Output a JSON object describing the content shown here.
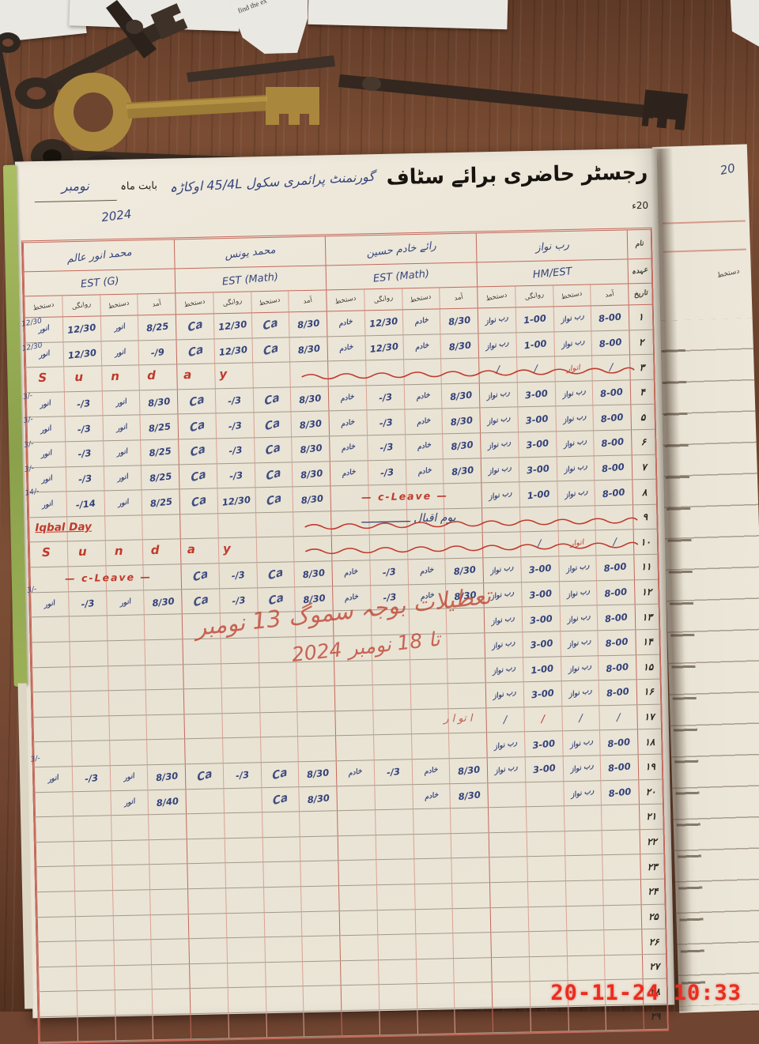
{
  "scene": {
    "desk_color": "#6f4430",
    "keys": [
      "iron-skeleton-key",
      "iron-skeleton-key",
      "brass-bow-key",
      "iron-key-under-brass",
      "key-bow-cluster",
      "long-iron-key",
      "hanging-iron-key"
    ],
    "paper_scrap_text": "find the ex",
    "camera_timestamp": "20-11-24 10:33"
  },
  "register": {
    "title": "رجسٹر حاضری برائے سٹاف",
    "school": "گورنمنٹ پرائمری سکول 45/4L اوکاڑہ",
    "month_label": "بابت ماہ",
    "month": "نومبر",
    "year_suffix": "20ء",
    "year": "2024",
    "next_page_note": "20",
    "next_page_header": "دستخط",
    "side_labels": {
      "name": "نام",
      "designation": "عہدہ",
      "date": "تاریخ"
    },
    "subcols": [
      "آمد",
      "دستخط",
      "روانگی",
      "دستخط"
    ],
    "teachers": [
      {
        "name": "رب نواز",
        "designation": "HM/EST"
      },
      {
        "name": "رائے خادم حسین",
        "designation": "EST (Math)"
      },
      {
        "name": "محمد یونس",
        "designation": "EST (Math)"
      },
      {
        "name": "محمد انور عالم",
        "designation": "EST (G)"
      }
    ],
    "signatures": {
      "rn": "رب نواز",
      "kh": "خادم",
      "ca": "Ca",
      "an": "انور"
    },
    "overlays": {
      "sunday": "S u n d a y",
      "cleave": "— c-Leave —",
      "iqbal_en": "Iqbal Day",
      "iqbal_ur": "یوم اقبال ـــــــــــــــ",
      "smog_line1": "تعطیلات بوجہ سموگ 13 نومبر",
      "smog_line2": "تا 18 نومبر 2024",
      "atwar": "ا تو ا ر"
    },
    "margin_notes": [
      {
        "row": 1,
        "text": "12/30"
      },
      {
        "row": 2,
        "text": "12/30"
      },
      {
        "row": 4,
        "text": "3/-"
      },
      {
        "row": 5,
        "text": "3/-"
      },
      {
        "row": 6,
        "text": "3/-"
      },
      {
        "row": 7,
        "text": "3/-"
      },
      {
        "row": 8,
        "text": "14/-"
      },
      {
        "row": 12,
        "text": "3/-"
      },
      {
        "row": 19,
        "text": "3/-"
      }
    ],
    "rows": [
      {
        "no": "۱",
        "cells": [
          "t:8-00",
          "s:rn",
          "t:1-00",
          "s:rn",
          "t:8/30",
          "s:kh",
          "t:12/30",
          "s:kh",
          "t:8/30",
          "s:ca",
          "t:12/30",
          "s:ca",
          "t:8/25",
          "s:an",
          "t:12/30",
          "s:an"
        ]
      },
      {
        "no": "۲",
        "cells": [
          "t:8-00",
          "s:rn",
          "t:1-00",
          "s:rn",
          "t:8/30",
          "s:kh",
          "t:12/30",
          "s:kh",
          "t:8/30",
          "s:ca",
          "t:12/30",
          "s:ca",
          "t:9/-",
          "s:an",
          "t:12/30",
          "s:an"
        ]
      },
      {
        "no": "۳",
        "cells": [
          "/",
          "r:اتوار",
          "/",
          "/",
          "",
          "",
          "",
          "",
          "",
          "",
          "",
          "",
          "",
          "",
          "",
          ""
        ],
        "ov": [
          "sunday"
        ]
      },
      {
        "no": "۴",
        "cells": [
          "t:8-00",
          "s:rn",
          "t:3-00",
          "s:rn",
          "t:8/30",
          "s:kh",
          "t:3/-",
          "s:kh",
          "t:8/30",
          "s:ca",
          "t:3/-",
          "s:ca",
          "t:8/30",
          "s:an",
          "t:3/-",
          "s:an"
        ]
      },
      {
        "no": "۵",
        "cells": [
          "t:8-00",
          "s:rn",
          "t:3-00",
          "s:rn",
          "t:8/30",
          "s:kh",
          "t:3/-",
          "s:kh",
          "t:8/30",
          "s:ca",
          "t:3/-",
          "s:ca",
          "t:8/25",
          "s:an",
          "t:3/-",
          "s:an"
        ]
      },
      {
        "no": "۶",
        "cells": [
          "t:8-00",
          "s:rn",
          "t:3-00",
          "s:rn",
          "t:8/30",
          "s:kh",
          "t:3/-",
          "s:kh",
          "t:8/30",
          "s:ca",
          "t:3/-",
          "s:ca",
          "t:8/25",
          "s:an",
          "t:3/-",
          "s:an"
        ]
      },
      {
        "no": "۷",
        "cells": [
          "t:8-00",
          "s:rn",
          "t:3-00",
          "s:rn",
          "t:8/30",
          "s:kh",
          "t:3/-",
          "s:kh",
          "t:8/30",
          "s:ca",
          "t:3/-",
          "s:ca",
          "t:8/25",
          "s:an",
          "t:3/-",
          "s:an"
        ]
      },
      {
        "no": "۸",
        "cells": [
          "t:8-00",
          "s:rn",
          "t:1-00",
          "s:rn",
          "",
          "",
          "",
          "",
          "t:8/30",
          "s:ca",
          "t:12/30",
          "s:ca",
          "t:8/25",
          "s:an",
          "t:14/-",
          "s:an"
        ],
        "ov": [
          "cleave-t2"
        ]
      },
      {
        "no": "۹",
        "cells": [
          "",
          "",
          "",
          "",
          "",
          "",
          "",
          "",
          "",
          "",
          "",
          "",
          "",
          "",
          "",
          ""
        ],
        "ov": [
          "iqbal"
        ]
      },
      {
        "no": "۱۰",
        "cells": [
          "/",
          "r:اتوار",
          "/",
          "",
          "",
          "",
          "",
          "",
          "",
          "",
          "",
          "",
          "",
          "",
          "",
          ""
        ],
        "ov": [
          "sunday"
        ]
      },
      {
        "no": "۱۱",
        "cells": [
          "t:8-00",
          "s:rn",
          "t:3-00",
          "s:rn",
          "t:8/30",
          "s:kh",
          "t:3/-",
          "s:kh",
          "t:8/30",
          "s:ca",
          "t:3/-",
          "s:ca",
          "",
          "",
          "",
          ""
        ],
        "ov": [
          "cleave-t4"
        ]
      },
      {
        "no": "۱۲",
        "cells": [
          "t:8-00",
          "s:rn",
          "t:3-00",
          "s:rn",
          "t:8/30",
          "s:kh",
          "t:3/-",
          "s:kh",
          "t:8/30",
          "s:ca",
          "t:3/-",
          "s:ca",
          "t:8/30",
          "s:an",
          "t:3/-",
          "s:an"
        ]
      },
      {
        "no": "۱۳",
        "cells": [
          "t:8-00",
          "s:rn",
          "t:3-00",
          "s:rn",
          "",
          "",
          "",
          "",
          "",
          "",
          "",
          "",
          "",
          "",
          "",
          ""
        ],
        "ov": [
          "smog"
        ]
      },
      {
        "no": "۱۴",
        "cells": [
          "t:8-00",
          "s:rn",
          "t:3-00",
          "s:rn",
          "",
          "",
          "",
          "",
          "",
          "",
          "",
          "",
          "",
          "",
          "",
          ""
        ]
      },
      {
        "no": "۱۵",
        "cells": [
          "t:8-00",
          "s:rn",
          "t:1-00",
          "s:rn",
          "",
          "",
          "",
          "",
          "",
          "",
          "",
          "",
          "",
          "",
          "",
          ""
        ]
      },
      {
        "no": "۱۶",
        "cells": [
          "t:8-00",
          "s:rn",
          "t:3-00",
          "s:rn",
          "",
          "",
          "",
          "",
          "",
          "",
          "",
          "",
          "",
          "",
          "",
          ""
        ]
      },
      {
        "no": "۱۷",
        "cells": [
          "/",
          "/",
          "rs:/",
          "/",
          "",
          "",
          "",
          "",
          "",
          "",
          "",
          "",
          "",
          "",
          "",
          ""
        ],
        "ov": [
          "atwar"
        ]
      },
      {
        "no": "۱۸",
        "cells": [
          "t:8-00",
          "s:rn",
          "t:3-00",
          "s:rn",
          "",
          "",
          "",
          "",
          "",
          "",
          "",
          "",
          "",
          "",
          "",
          ""
        ]
      },
      {
        "no": "۱۹",
        "cells": [
          "t:8-00",
          "s:rn",
          "t:3-00",
          "s:rn",
          "t:8/30",
          "s:kh",
          "t:3/-",
          "s:kh",
          "t:8/30",
          "s:ca",
          "t:3/-",
          "s:ca",
          "t:8/30",
          "s:an",
          "t:3/-",
          "s:an"
        ]
      },
      {
        "no": "۲۰",
        "cells": [
          "t:8-00",
          "s:rn",
          "",
          "",
          "t:8/30",
          "s:kh",
          "",
          "",
          "t:8/30",
          "s:ca",
          "",
          "",
          "t:8/40",
          "s:an",
          "",
          ""
        ]
      },
      {
        "no": "۲۱",
        "cells": [
          "",
          "",
          "",
          "",
          "",
          "",
          "",
          "",
          "",
          "",
          "",
          "",
          "",
          "",
          "",
          ""
        ]
      },
      {
        "no": "۲۲",
        "cells": [
          "",
          "",
          "",
          "",
          "",
          "",
          "",
          "",
          "",
          "",
          "",
          "",
          "",
          "",
          "",
          ""
        ]
      },
      {
        "no": "۲۳",
        "cells": [
          "",
          "",
          "",
          "",
          "",
          "",
          "",
          "",
          "",
          "",
          "",
          "",
          "",
          "",
          "",
          ""
        ]
      },
      {
        "no": "۲۴",
        "cells": [
          "",
          "",
          "",
          "",
          "",
          "",
          "",
          "",
          "",
          "",
          "",
          "",
          "",
          "",
          "",
          ""
        ]
      },
      {
        "no": "۲۵",
        "cells": [
          "",
          "",
          "",
          "",
          "",
          "",
          "",
          "",
          "",
          "",
          "",
          "",
          "",
          "",
          "",
          ""
        ]
      },
      {
        "no": "۲۶",
        "cells": [
          "",
          "",
          "",
          "",
          "",
          "",
          "",
          "",
          "",
          "",
          "",
          "",
          "",
          "",
          "",
          ""
        ]
      },
      {
        "no": "۲۷",
        "cells": [
          "",
          "",
          "",
          "",
          "",
          "",
          "",
          "",
          "",
          "",
          "",
          "",
          "",
          "",
          "",
          ""
        ]
      },
      {
        "no": "۲۸",
        "cells": [
          "",
          "",
          "",
          "",
          "",
          "",
          "",
          "",
          "",
          "",
          "",
          "",
          "",
          "",
          "",
          ""
        ]
      },
      {
        "no": "۲۹",
        "cells": [
          "",
          "",
          "",
          "",
          "",
          "",
          "",
          "",
          "",
          "",
          "",
          "",
          "",
          "",
          "",
          ""
        ]
      }
    ]
  },
  "colors": {
    "ink_blue": "#35447b",
    "ink_red": "#bf3a2c",
    "grid_pink": "#d9a294",
    "grid_red": "#c4685a",
    "row_line": "#a39888",
    "page_cream": "#ece6d8",
    "wood_brown": "#6f4430",
    "green_edge": "#93a84e",
    "timestamp_red": "#ea2d1f"
  }
}
